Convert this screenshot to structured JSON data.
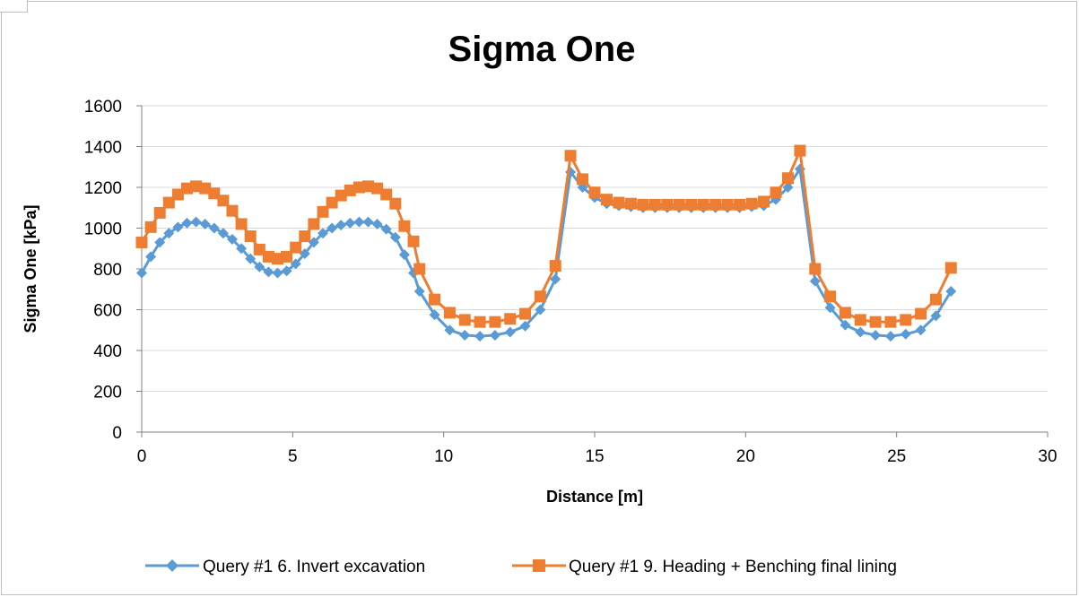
{
  "chart_data": {
    "type": "line",
    "title": "Sigma One",
    "xlabel": "Distance [m]",
    "ylabel": "Sigma One [kPa]",
    "xlim": [
      0,
      30
    ],
    "ylim": [
      0,
      1600
    ],
    "x_ticks": [
      "0",
      "5",
      "10",
      "15",
      "20",
      "25",
      "30"
    ],
    "y_ticks": [
      "0",
      "200",
      "400",
      "600",
      "800",
      "1000",
      "1200",
      "1400",
      "1600"
    ],
    "grid": "horizontal",
    "legend_position": "bottom",
    "colors": {
      "series1": "#5b9bd5",
      "series2": "#ed7d31"
    },
    "series": [
      {
        "name": "Query #1 6. Invert excavation",
        "marker": "diamond",
        "x": [
          0,
          0.3,
          0.6,
          0.9,
          1.2,
          1.5,
          1.8,
          2.1,
          2.4,
          2.7,
          3.0,
          3.3,
          3.6,
          3.9,
          4.2,
          4.5,
          4.8,
          5.1,
          5.4,
          5.7,
          6.0,
          6.3,
          6.6,
          6.9,
          7.2,
          7.5,
          7.8,
          8.1,
          8.4,
          8.7,
          9.0,
          9.2,
          9.7,
          10.2,
          10.7,
          11.2,
          11.7,
          12.2,
          12.7,
          13.2,
          13.7,
          14.2,
          14.6,
          15.0,
          15.4,
          15.8,
          16.2,
          16.6,
          17.0,
          17.4,
          17.8,
          18.2,
          18.6,
          19.0,
          19.4,
          19.8,
          20.2,
          20.6,
          21.0,
          21.4,
          21.8,
          22.3,
          22.8,
          23.3,
          23.8,
          24.3,
          24.8,
          25.3,
          25.8,
          26.3,
          26.8
        ],
        "values": [
          780,
          860,
          930,
          975,
          1005,
          1025,
          1030,
          1020,
          1000,
          975,
          945,
          900,
          850,
          810,
          785,
          780,
          790,
          825,
          875,
          930,
          975,
          1000,
          1015,
          1025,
          1030,
          1030,
          1020,
          995,
          955,
          870,
          780,
          690,
          575,
          500,
          475,
          470,
          475,
          490,
          520,
          600,
          750,
          1275,
          1200,
          1150,
          1120,
          1110,
          1105,
          1100,
          1100,
          1100,
          1100,
          1100,
          1100,
          1100,
          1100,
          1100,
          1105,
          1110,
          1140,
          1200,
          1290,
          740,
          610,
          525,
          490,
          475,
          470,
          480,
          500,
          570,
          690
        ]
      },
      {
        "name": "Query #1 9. Heading + Benching final lining",
        "marker": "square",
        "x": [
          0,
          0.3,
          0.6,
          0.9,
          1.2,
          1.5,
          1.8,
          2.1,
          2.4,
          2.7,
          3.0,
          3.3,
          3.6,
          3.9,
          4.2,
          4.5,
          4.8,
          5.1,
          5.4,
          5.7,
          6.0,
          6.3,
          6.6,
          6.9,
          7.2,
          7.5,
          7.8,
          8.1,
          8.4,
          8.7,
          9.0,
          9.2,
          9.7,
          10.2,
          10.7,
          11.2,
          11.7,
          12.2,
          12.7,
          13.2,
          13.7,
          14.2,
          14.6,
          15.0,
          15.4,
          15.8,
          16.2,
          16.6,
          17.0,
          17.4,
          17.8,
          18.2,
          18.6,
          19.0,
          19.4,
          19.8,
          20.2,
          20.6,
          21.0,
          21.4,
          21.8,
          22.3,
          22.8,
          23.3,
          23.8,
          24.3,
          24.8,
          25.3,
          25.8,
          26.3,
          26.8
        ],
        "values": [
          930,
          1005,
          1075,
          1125,
          1165,
          1195,
          1205,
          1195,
          1170,
          1135,
          1085,
          1020,
          960,
          895,
          860,
          850,
          860,
          905,
          960,
          1020,
          1080,
          1125,
          1160,
          1185,
          1200,
          1205,
          1195,
          1165,
          1120,
          1010,
          935,
          800,
          650,
          585,
          550,
          540,
          540,
          555,
          580,
          665,
          815,
          1355,
          1240,
          1175,
          1140,
          1125,
          1120,
          1115,
          1115,
          1115,
          1115,
          1115,
          1115,
          1115,
          1115,
          1115,
          1120,
          1130,
          1175,
          1245,
          1380,
          800,
          665,
          585,
          550,
          540,
          540,
          550,
          580,
          650,
          805
        ]
      }
    ]
  }
}
